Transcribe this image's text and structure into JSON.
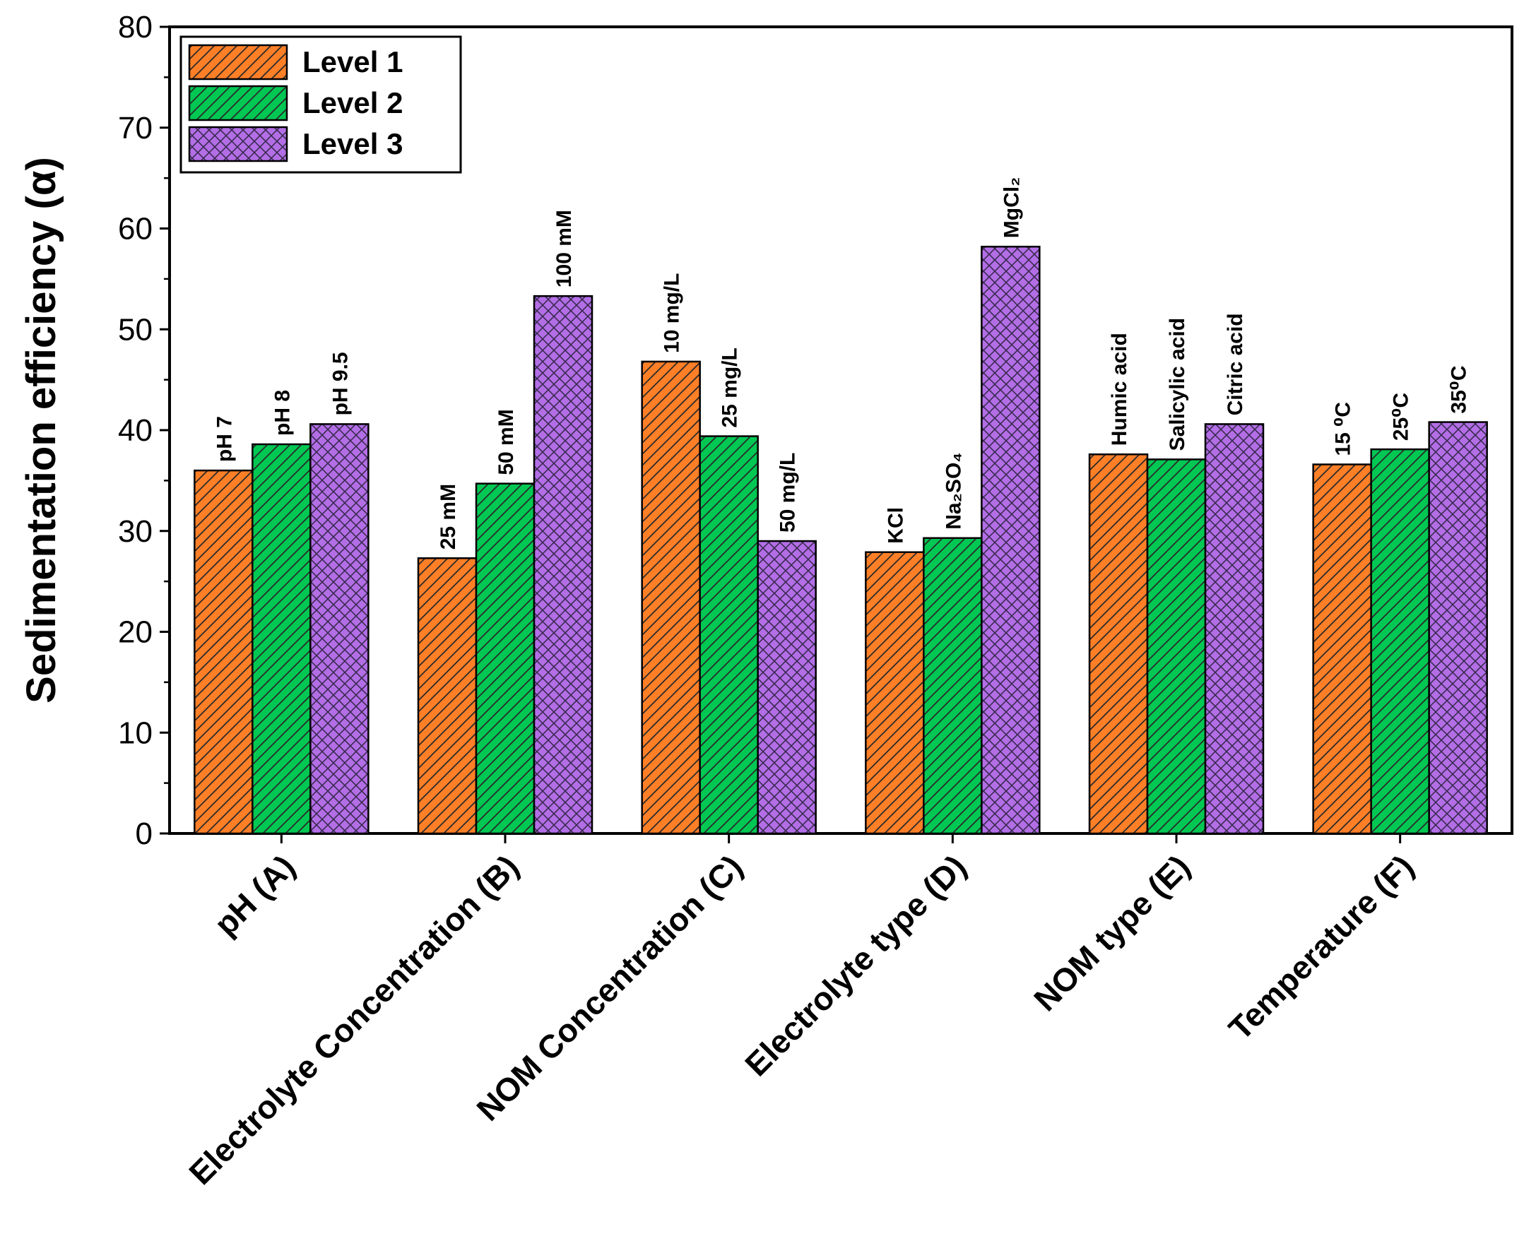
{
  "chart_data": {
    "type": "bar",
    "ylabel": "Sedimentation efficiency (α)",
    "xlabel": "",
    "ylim": [
      0,
      80
    ],
    "yticks": [
      0,
      10,
      20,
      30,
      40,
      50,
      60,
      70,
      80
    ],
    "categories": [
      "pH (A)",
      "Electrolyte Concentration (B)",
      "NOM Concentration (C)",
      "Electrolyte type (D)",
      "NOM type (E)",
      "Temperature (F)"
    ],
    "series": [
      {
        "name": "Level 1",
        "color": "#ff7f27",
        "pattern": "diagonal-hatch",
        "values": [
          36.0,
          27.3,
          46.8,
          27.9,
          37.6,
          36.6
        ],
        "point_labels": [
          "pH 7",
          "25 mM",
          "10 mg/L",
          "KCl",
          "Humic acid",
          "15 ⁰C"
        ]
      },
      {
        "name": "Level 2",
        "color": "#00c853",
        "pattern": "diagonal-hatch",
        "values": [
          38.6,
          34.7,
          39.4,
          29.3,
          37.1,
          38.1
        ],
        "point_labels": [
          "pH 8",
          "50 mM",
          "25 mg/L",
          "Na₂SO₄",
          "Salicylic acid",
          "25⁰C"
        ]
      },
      {
        "name": "Level 3",
        "color": "#b36ee6",
        "pattern": "cross-hatch",
        "values": [
          40.6,
          53.3,
          29.0,
          58.2,
          40.6,
          40.8
        ],
        "point_labels": [
          "pH 9.5",
          "100 mM",
          "50 mg/L",
          "MgCl₂",
          "Citric acid",
          "35⁰C"
        ]
      }
    ],
    "legend": {
      "position": "top-left",
      "entries": [
        "Level 1",
        "Level 2",
        "Level 3"
      ]
    },
    "grid": false
  }
}
